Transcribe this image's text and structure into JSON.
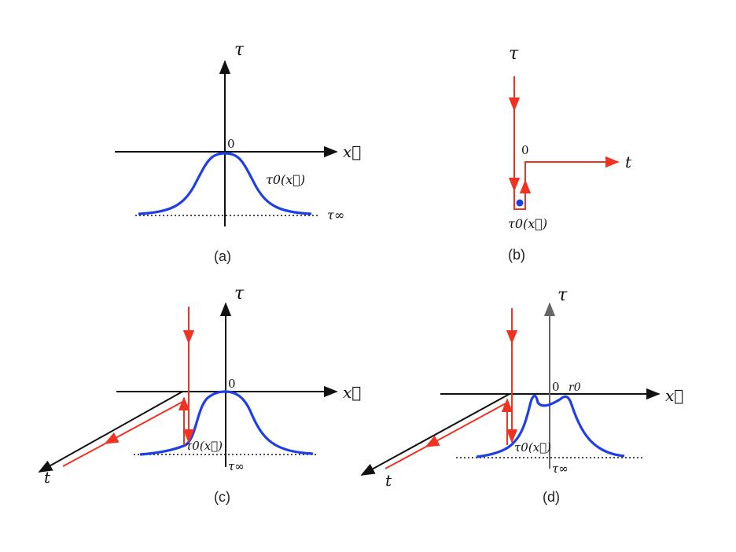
{
  "panels": {
    "a": {
      "caption": "(a)",
      "tau_label": "τ",
      "x_label": "x⃗",
      "origin_label": "0",
      "curve_label": "τ0(x⃗)",
      "asymptote_label": "τ∞"
    },
    "b": {
      "caption": "(b)",
      "tau_label": "τ",
      "t_label": "t",
      "origin_label": "0",
      "point_label": "τ0(x⃗)"
    },
    "c": {
      "caption": "(c)",
      "tau_label": "τ",
      "x_label": "x⃗",
      "t_label": "t",
      "origin_label": "0",
      "curve_label": "τ0(x⃗)",
      "asymptote_label": "τ∞"
    },
    "d": {
      "caption": "(d)",
      "tau_label": "τ",
      "x_label": "x⃗",
      "t_label": "t",
      "origin_label": "0",
      "r0_label": "r0",
      "curve_label": "τ0(x⃗)",
      "asymptote_label": "τ∞"
    }
  },
  "colors": {
    "axis": "#111111",
    "gray_axis": "#666666",
    "curve": "#1f3fe6",
    "contour": "#ee3322",
    "dot": "#1f3fe6"
  }
}
